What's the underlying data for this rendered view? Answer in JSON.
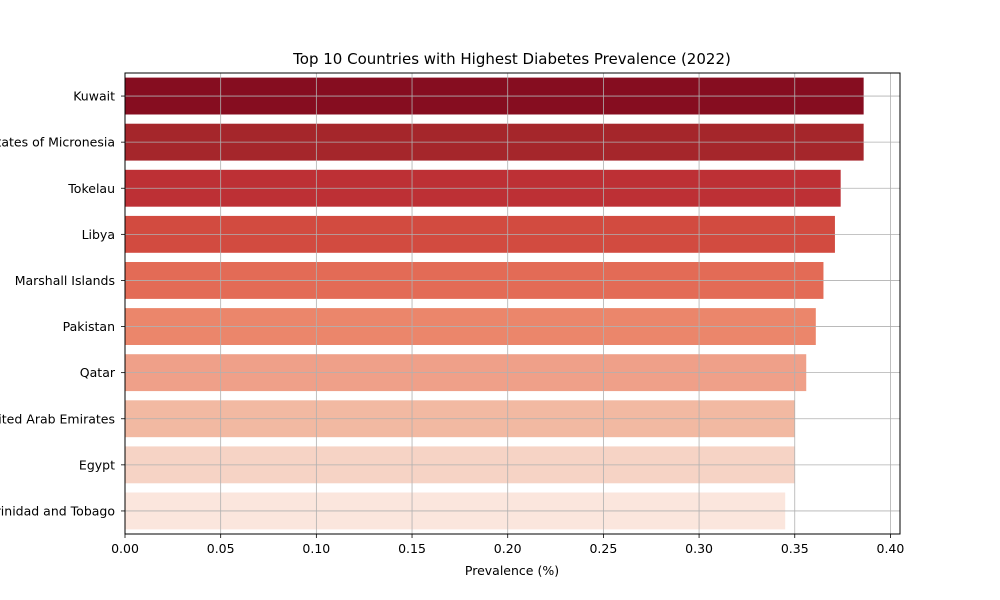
{
  "chart_data": {
    "type": "bar",
    "orientation": "horizontal",
    "title": "Top 10 Countries with Highest Diabetes Prevalence (2022)",
    "xlabel": "Prevalence (%)",
    "ylabel": "",
    "xlim": [
      0,
      0.405
    ],
    "xticks": [
      "0.00",
      "0.05",
      "0.10",
      "0.15",
      "0.20",
      "0.25",
      "0.30",
      "0.35",
      "0.40"
    ],
    "grid": true,
    "categories": [
      "Kuwait",
      "Federated States of Micronesia",
      "Tokelau",
      "Libya",
      "Marshall Islands",
      "Pakistan",
      "Qatar",
      "United Arab Emirates",
      "Egypt",
      "Trinidad and Tobago"
    ],
    "values": [
      0.386,
      0.386,
      0.374,
      0.371,
      0.365,
      0.361,
      0.356,
      0.35,
      0.35,
      0.345
    ],
    "colors": [
      "#860d20",
      "#a5262b",
      "#bd3035",
      "#d24b40",
      "#e36b56",
      "#eb866b",
      "#efa089",
      "#f2b9a2",
      "#f6d3c5",
      "#fbe6dd"
    ]
  }
}
